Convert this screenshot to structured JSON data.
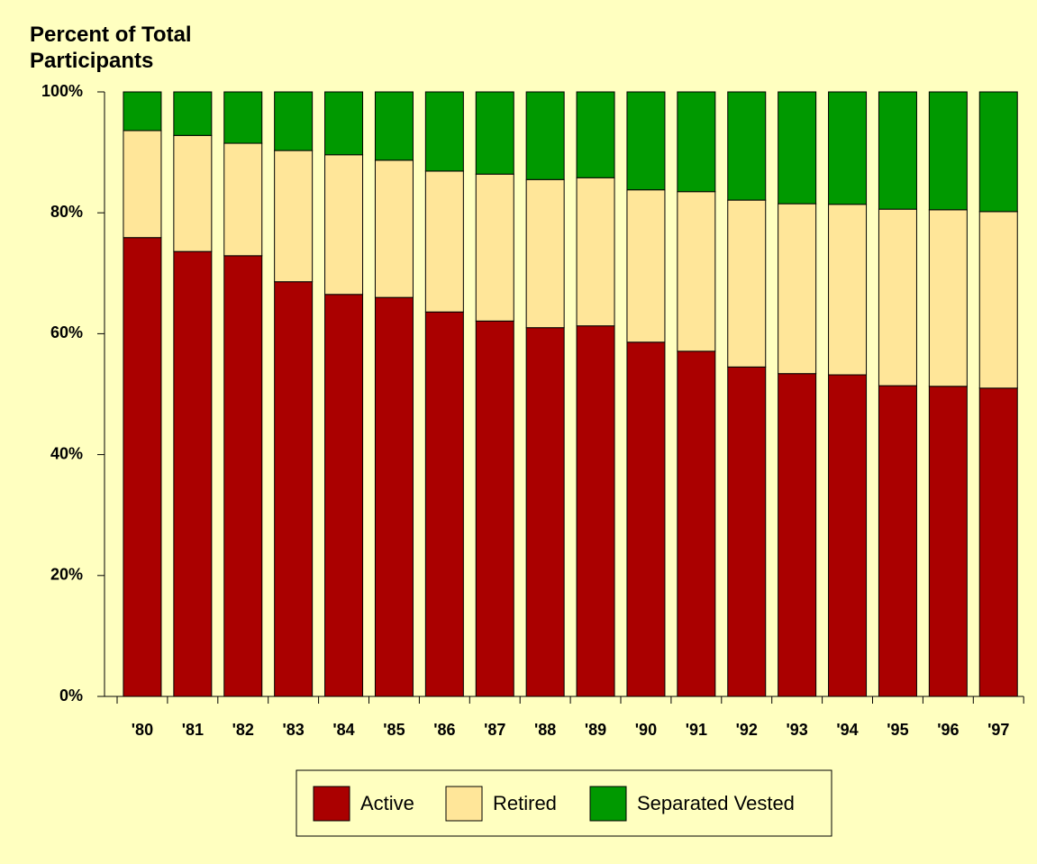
{
  "chart_data": {
    "type": "bar",
    "stacked": true,
    "title": "Percent of Total Participants",
    "categories": [
      "'80",
      "'81",
      "'82",
      "'83",
      "'84",
      "'85",
      "'86",
      "'87",
      "'88",
      "'89",
      "'90",
      "'91",
      "'92",
      "'93",
      "'94",
      "'95",
      "'96",
      "'97"
    ],
    "series": [
      {
        "name": "Active",
        "color": "#aa0000",
        "values": [
          75.9,
          73.6,
          72.9,
          68.6,
          66.5,
          66.0,
          63.6,
          62.1,
          61.0,
          61.3,
          58.6,
          57.1,
          54.5,
          53.4,
          53.2,
          51.4,
          51.3,
          51.0
        ]
      },
      {
        "name": "Retired",
        "color": "#ffe699",
        "values": [
          17.7,
          19.2,
          18.6,
          21.7,
          23.1,
          22.7,
          23.3,
          24.3,
          24.5,
          24.5,
          25.2,
          26.4,
          27.6,
          28.1,
          28.2,
          29.2,
          29.2,
          29.2
        ]
      },
      {
        "name": "Separated Vested",
        "color": "#009900",
        "values": [
          6.4,
          7.2,
          8.5,
          9.7,
          10.4,
          11.3,
          13.1,
          13.6,
          14.5,
          14.2,
          16.2,
          16.5,
          17.9,
          18.5,
          18.6,
          19.4,
          19.5,
          19.8
        ]
      }
    ],
    "ylim": [
      0,
      100
    ],
    "yticks": [
      {
        "value": 0,
        "label": "0%"
      },
      {
        "value": 20,
        "label": "20%"
      },
      {
        "value": 40,
        "label": "40%"
      },
      {
        "value": 60,
        "label": "60%"
      },
      {
        "value": 80,
        "label": "80%"
      },
      {
        "value": 100,
        "label": "100%"
      }
    ],
    "legend": "bottom"
  }
}
